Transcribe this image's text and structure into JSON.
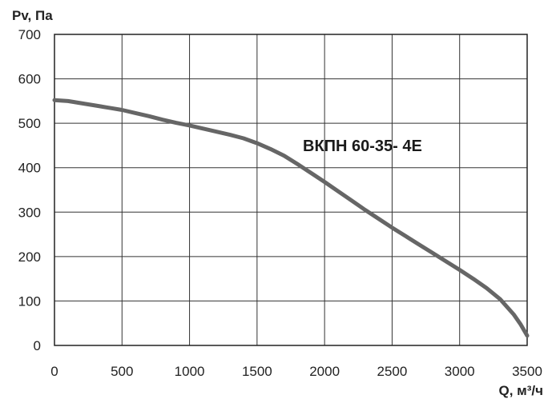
{
  "chart_data": {
    "type": "line",
    "title": "",
    "xlabel": "Q, м³/ч",
    "ylabel": "Pv, Па",
    "xlim": [
      0,
      3500
    ],
    "ylim": [
      0,
      700
    ],
    "xticks": [
      0,
      500,
      1000,
      1500,
      2000,
      2500,
      3000,
      3500
    ],
    "yticks": [
      0,
      100,
      200,
      300,
      400,
      500,
      600,
      700
    ],
    "grid": true,
    "legend": "none",
    "annotation": "ВКПН 60-35- 4Е",
    "series_color": "#666666",
    "series": [
      {
        "x": [
          0,
          100,
          200,
          300,
          400,
          500,
          600,
          700,
          800,
          900,
          1000,
          1100,
          1200,
          1300,
          1400,
          1500,
          1600,
          1700,
          1800,
          1900,
          2000,
          2100,
          2200,
          2300,
          2400,
          2500,
          2600,
          2700,
          2800,
          2900,
          3000,
          3100,
          3200,
          3300,
          3400,
          3450,
          3500
        ],
        "y": [
          552,
          550,
          545,
          540,
          535,
          530,
          523,
          516,
          508,
          501,
          495,
          488,
          481,
          474,
          466,
          455,
          442,
          427,
          408,
          388,
          368,
          347,
          326,
          305,
          285,
          265,
          246,
          227,
          208,
          189,
          170,
          150,
          129,
          104,
          70,
          48,
          22
        ]
      }
    ]
  }
}
